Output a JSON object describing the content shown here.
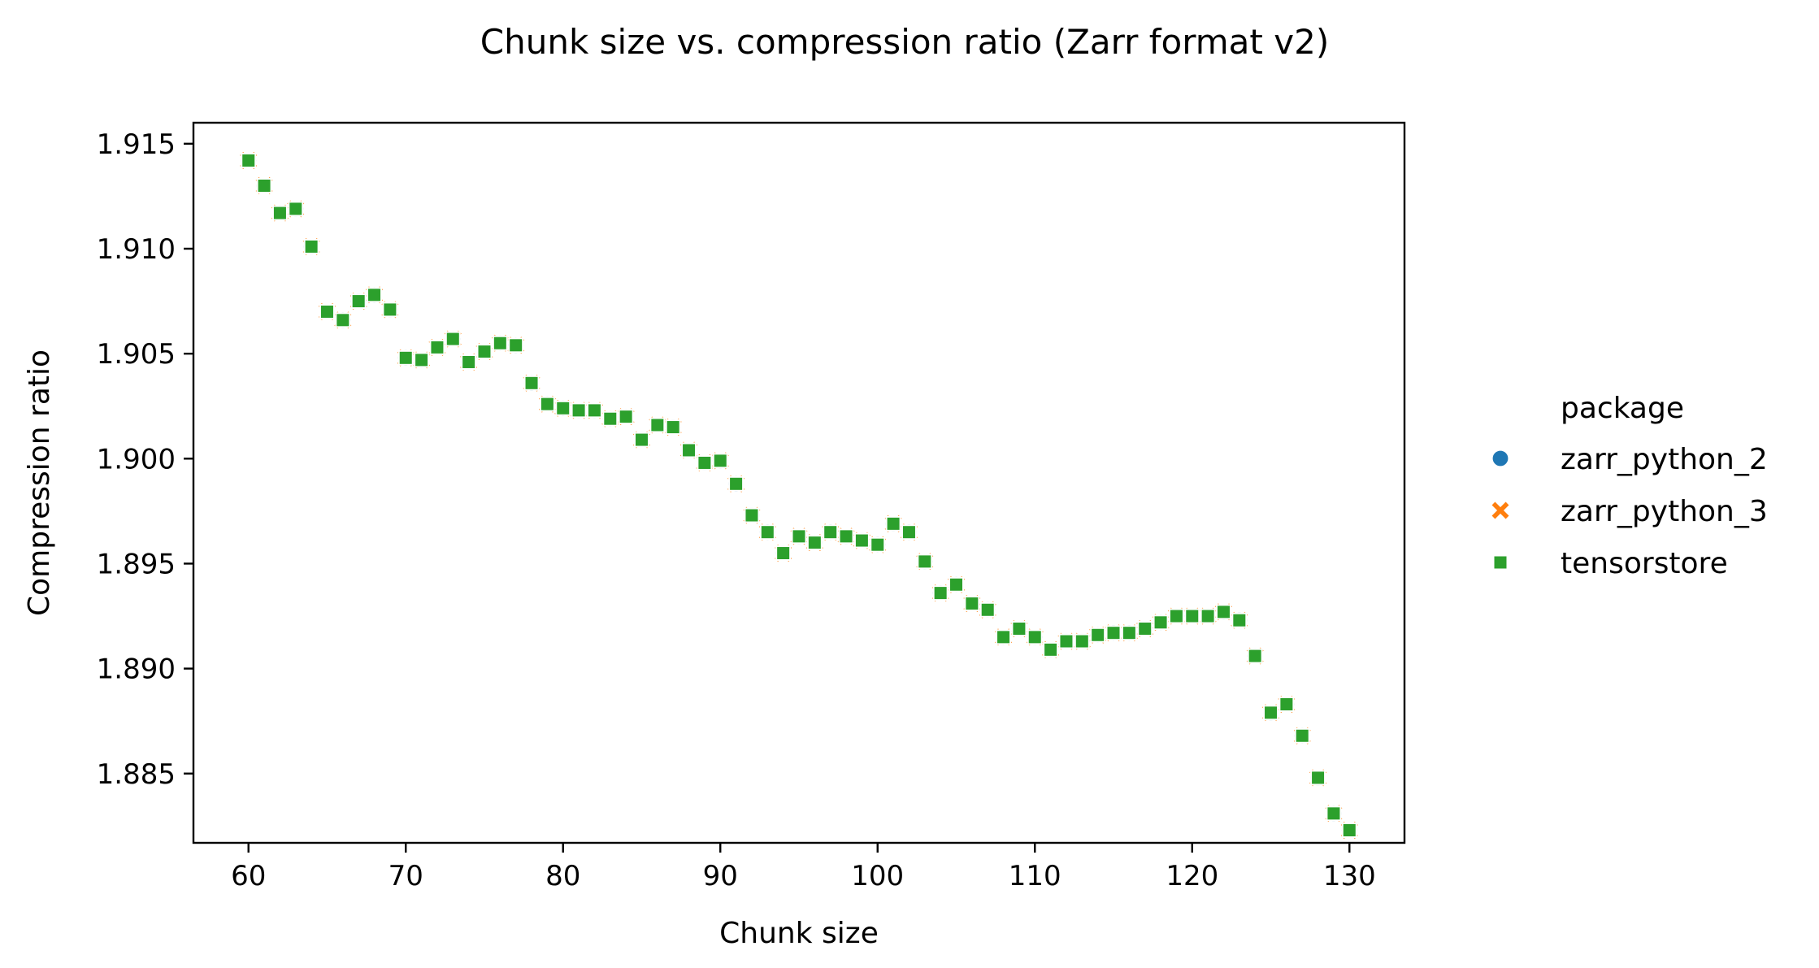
{
  "chart_data": {
    "type": "scatter",
    "title": "Chunk size vs. compression ratio (Zarr format v2)",
    "xlabel": "Chunk size",
    "ylabel": "Compression ratio",
    "xlim": [
      56.5,
      133.5
    ],
    "ylim": [
      1.8817,
      1.916
    ],
    "xticks": [
      60,
      70,
      80,
      90,
      100,
      110,
      120,
      130
    ],
    "yticks": [
      1.885,
      1.89,
      1.895,
      1.9,
      1.905,
      1.91,
      1.915
    ],
    "ytick_labels": [
      "1.885",
      "1.890",
      "1.895",
      "1.900",
      "1.905",
      "1.910",
      "1.915"
    ],
    "grid": false,
    "legend": {
      "title": "package",
      "placement": "right"
    },
    "x": [
      60,
      61,
      62,
      63,
      64,
      65,
      66,
      67,
      68,
      69,
      70,
      71,
      72,
      73,
      74,
      75,
      76,
      77,
      78,
      79,
      80,
      81,
      82,
      83,
      84,
      85,
      86,
      87,
      88,
      89,
      90,
      91,
      92,
      93,
      94,
      95,
      96,
      97,
      98,
      99,
      100,
      101,
      102,
      103,
      104,
      105,
      106,
      107,
      108,
      109,
      110,
      111,
      112,
      113,
      114,
      115,
      116,
      117,
      118,
      119,
      120,
      121,
      122,
      123,
      124,
      125,
      126,
      127,
      128,
      129,
      130
    ],
    "series": [
      {
        "name": "zarr_python_2",
        "marker": "circle",
        "color": "#1f77b4",
        "values": [
          1.9142,
          1.913,
          1.9117,
          1.9119,
          1.9101,
          1.907,
          1.9066,
          1.9075,
          1.9078,
          1.9071,
          1.9048,
          1.9047,
          1.9053,
          1.9057,
          1.9046,
          1.9051,
          1.9055,
          1.9054,
          1.9036,
          1.9026,
          1.9024,
          1.9023,
          1.9023,
          1.9019,
          1.902,
          1.9009,
          1.9016,
          1.9015,
          1.9004,
          1.8998,
          1.8999,
          1.8988,
          1.8973,
          1.8965,
          1.8955,
          1.8963,
          1.896,
          1.8965,
          1.8963,
          1.8961,
          1.8959,
          1.8969,
          1.8965,
          1.8951,
          1.8936,
          1.894,
          1.8931,
          1.8928,
          1.8915,
          1.8919,
          1.8915,
          1.8909,
          1.8913,
          1.8913,
          1.8916,
          1.8917,
          1.8917,
          1.8919,
          1.8922,
          1.8925,
          1.8925,
          1.8925,
          1.8927,
          1.8923,
          1.8906,
          1.8879,
          1.8883,
          1.8868,
          1.8848,
          1.8831,
          1.8823
        ]
      },
      {
        "name": "zarr_python_3",
        "marker": "x",
        "color": "#ff7f0e",
        "values": [
          1.9142,
          1.913,
          1.9117,
          1.9119,
          1.9101,
          1.907,
          1.9066,
          1.9075,
          1.9078,
          1.9071,
          1.9048,
          1.9047,
          1.9053,
          1.9057,
          1.9046,
          1.9051,
          1.9055,
          1.9054,
          1.9036,
          1.9026,
          1.9024,
          1.9023,
          1.9023,
          1.9019,
          1.902,
          1.9009,
          1.9016,
          1.9015,
          1.9004,
          1.8998,
          1.8999,
          1.8988,
          1.8973,
          1.8965,
          1.8955,
          1.8963,
          1.896,
          1.8965,
          1.8963,
          1.8961,
          1.8959,
          1.8969,
          1.8965,
          1.8951,
          1.8936,
          1.894,
          1.8931,
          1.8928,
          1.8915,
          1.8919,
          1.8915,
          1.8909,
          1.8913,
          1.8913,
          1.8916,
          1.8917,
          1.8917,
          1.8919,
          1.8922,
          1.8925,
          1.8925,
          1.8925,
          1.8927,
          1.8923,
          1.8906,
          1.8879,
          1.8883,
          1.8868,
          1.8848,
          1.8831,
          1.8823
        ]
      },
      {
        "name": "tensorstore",
        "marker": "square",
        "color": "#2ca02c",
        "values": [
          1.9142,
          1.913,
          1.9117,
          1.9119,
          1.9101,
          1.907,
          1.9066,
          1.9075,
          1.9078,
          1.9071,
          1.9048,
          1.9047,
          1.9053,
          1.9057,
          1.9046,
          1.9051,
          1.9055,
          1.9054,
          1.9036,
          1.9026,
          1.9024,
          1.9023,
          1.9023,
          1.9019,
          1.902,
          1.9009,
          1.9016,
          1.9015,
          1.9004,
          1.8998,
          1.8999,
          1.8988,
          1.8973,
          1.8965,
          1.8955,
          1.8963,
          1.896,
          1.8965,
          1.8963,
          1.8961,
          1.8959,
          1.8969,
          1.8965,
          1.8951,
          1.8936,
          1.894,
          1.8931,
          1.8928,
          1.8915,
          1.8919,
          1.8915,
          1.8909,
          1.8913,
          1.8913,
          1.8916,
          1.8917,
          1.8917,
          1.8919,
          1.8922,
          1.8925,
          1.8925,
          1.8925,
          1.8927,
          1.8923,
          1.8906,
          1.8879,
          1.8883,
          1.8868,
          1.8848,
          1.8831,
          1.8823
        ]
      }
    ]
  }
}
